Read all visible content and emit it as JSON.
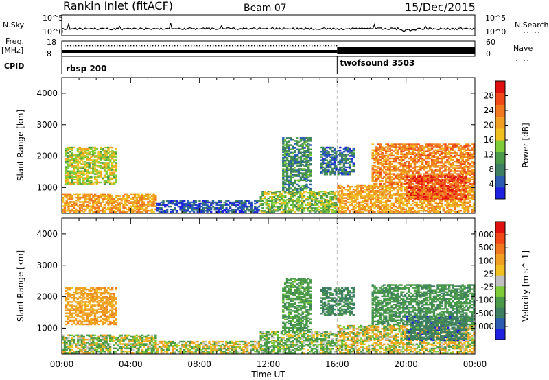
{
  "header": {
    "station": "Rankin Inlet (fitACF)",
    "beam": "Beam 07",
    "date": "15/Dec/2015"
  },
  "params_panel": {
    "nsky_label": "N.Sky",
    "nsearch_label": "N.Search",
    "freq_label_line1": "Freq.",
    "freq_label_line2": "[MHz]",
    "nave_label": "Nave",
    "cpid_label": "CPID",
    "left_ticks_top": [
      "10^5",
      "10^0"
    ],
    "right_ticks_top": [
      "10^5",
      "10^0"
    ],
    "left_ticks_freq": [
      "18",
      "8"
    ],
    "right_ticks_nave": [
      "60",
      "0"
    ],
    "cpid_segments": [
      {
        "name": "rbsp",
        "id": "200",
        "start_hour": 0
      },
      {
        "name": "twofsound",
        "id": "3503",
        "start_hour": 16
      }
    ]
  },
  "chart_data": [
    {
      "type": "heatmap",
      "title": "Power",
      "ylabel": "Slant Range [km]",
      "xlabel": "",
      "x_range_hours": [
        0,
        24
      ],
      "x_ticks": [
        "00:00",
        "04:00",
        "08:00",
        "12:00",
        "16:00",
        "20:00",
        "00:00"
      ],
      "ylim": [
        180,
        4500
      ],
      "y_ticks": [
        1000,
        2000,
        3000,
        4000
      ],
      "colorbar": {
        "label": "Power [dB]",
        "ticks": [
          "28",
          "24",
          "20",
          "16",
          "12",
          "8",
          "4"
        ],
        "colors": [
          "#2020e0",
          "#2a5db0",
          "#3e7f62",
          "#4a9a4a",
          "#7dcc38",
          "#f0c020",
          "#f0a020",
          "#f07820",
          "#f04818",
          "#e01010"
        ]
      },
      "echo_regions": [
        {
          "t0": 0.0,
          "t1": 5.5,
          "r0": 200,
          "r1": 800,
          "value": 20
        },
        {
          "t0": 0.2,
          "t1": 3.2,
          "r0": 1100,
          "r1": 2300,
          "value": 16
        },
        {
          "t0": 5.5,
          "t1": 11.5,
          "r0": 200,
          "r1": 600,
          "value": 6
        },
        {
          "t0": 11.5,
          "t1": 16.0,
          "r0": 200,
          "r1": 900,
          "value": 14
        },
        {
          "t0": 12.8,
          "t1": 14.5,
          "r0": 900,
          "r1": 2600,
          "value": 10
        },
        {
          "t0": 15.0,
          "t1": 17.0,
          "r0": 1400,
          "r1": 2300,
          "value": 8
        },
        {
          "t0": 16.0,
          "t1": 24.0,
          "r0": 200,
          "r1": 1100,
          "value": 20
        },
        {
          "t0": 18.0,
          "t1": 24.0,
          "r0": 1100,
          "r1": 2400,
          "value": 22
        },
        {
          "t0": 20.0,
          "t1": 23.5,
          "r0": 600,
          "r1": 1400,
          "value": 26
        }
      ]
    },
    {
      "type": "heatmap",
      "title": "Velocity",
      "ylabel": "Slant Range [km]",
      "xlabel": "Time UT",
      "x_range_hours": [
        0,
        24
      ],
      "x_ticks": [
        "00:00",
        "04:00",
        "08:00",
        "12:00",
        "16:00",
        "20:00",
        "00:00"
      ],
      "ylim": [
        180,
        4500
      ],
      "y_ticks": [
        1000,
        2000,
        3000,
        4000
      ],
      "colorbar": {
        "label": "Velocity [m s^-1]",
        "ticks": [
          "1000",
          "500",
          "100",
          "25",
          "-25",
          "-100",
          "-500",
          "-1000"
        ],
        "colors": [
          "#e01010",
          "#f04818",
          "#f07820",
          "#f0a020",
          "#f0c020",
          "#c0c0c0",
          "#7dcc38",
          "#4a9a4a",
          "#3e7f62",
          "#2a5db0",
          "#2020e0"
        ]
      },
      "echo_regions": [
        {
          "t0": 0.0,
          "t1": 5.5,
          "r0": 200,
          "r1": 800,
          "value": -50
        },
        {
          "t0": 0.2,
          "t1": 3.2,
          "r0": 1100,
          "r1": 2300,
          "value": 300
        },
        {
          "t0": 5.5,
          "t1": 11.5,
          "r0": 200,
          "r1": 600,
          "value": 0
        },
        {
          "t0": 11.5,
          "t1": 16.0,
          "r0": 200,
          "r1": 900,
          "value": -150
        },
        {
          "t0": 12.8,
          "t1": 14.5,
          "r0": 900,
          "r1": 2600,
          "value": -300
        },
        {
          "t0": 15.0,
          "t1": 17.0,
          "r0": 1400,
          "r1": 2300,
          "value": -600
        },
        {
          "t0": 16.0,
          "t1": 24.0,
          "r0": 200,
          "r1": 1100,
          "value": 50
        },
        {
          "t0": 18.0,
          "t1": 24.0,
          "r0": 1100,
          "r1": 2400,
          "value": -400
        },
        {
          "t0": 20.0,
          "t1": 23.5,
          "r0": 600,
          "r1": 1400,
          "value": -800
        }
      ]
    }
  ]
}
